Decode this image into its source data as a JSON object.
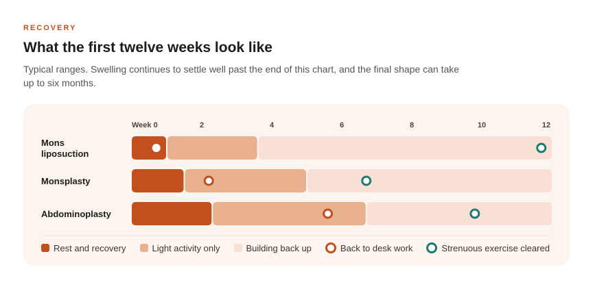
{
  "header": {
    "eyebrow": "RECOVERY",
    "title": "What the first twelve weeks look like",
    "subtitle": "Typical ranges. Swelling continues to settle well past the end of this chart, and the final shape can take up to six months."
  },
  "colors": {
    "rest": "#c2501e",
    "light": "#e8b08e",
    "building": "#f8e0d4",
    "desk": "#c0501e",
    "exercise": "#1e7b72",
    "accent": "#c0501e"
  },
  "chart_data": {
    "type": "bar",
    "orientation": "horizontal-stacked-timeline",
    "x_unit": "weeks",
    "xlim": [
      0,
      12
    ],
    "x_ticks": [
      0,
      2,
      4,
      6,
      8,
      10,
      12
    ],
    "x_tick_labels": [
      "Week 0",
      "2",
      "4",
      "6",
      "8",
      "10",
      "12"
    ],
    "grid": false,
    "legend_position": "bottom",
    "phases": [
      {
        "key": "rest",
        "label": "Rest and recovery"
      },
      {
        "key": "light",
        "label": "Light activity only"
      },
      {
        "key": "building",
        "label": "Building back up"
      }
    ],
    "markers": [
      {
        "key": "desk",
        "label": "Back to desk work"
      },
      {
        "key": "exercise",
        "label": "Strenuous exercise cleared"
      }
    ],
    "rows": [
      {
        "label": "Mons liposuction",
        "label_lines": [
          "Mons",
          "liposuction"
        ],
        "segments": [
          {
            "phase": "rest",
            "start": 0,
            "end": 1
          },
          {
            "phase": "light",
            "start": 1,
            "end": 3.6
          },
          {
            "phase": "building",
            "start": 3.6,
            "end": 12
          }
        ],
        "markers": [
          {
            "type": "desk",
            "week": 0.7
          },
          {
            "type": "exercise",
            "week": 11.7
          }
        ]
      },
      {
        "label": "Monsplasty",
        "label_lines": [
          "Monsplasty"
        ],
        "segments": [
          {
            "phase": "rest",
            "start": 0,
            "end": 1.5
          },
          {
            "phase": "light",
            "start": 1.5,
            "end": 5
          },
          {
            "phase": "building",
            "start": 5,
            "end": 12
          }
        ],
        "markers": [
          {
            "type": "desk",
            "week": 2.2
          },
          {
            "type": "exercise",
            "week": 6.7
          }
        ]
      },
      {
        "label": "Abdominoplasty",
        "label_lines": [
          "Abdominoplasty"
        ],
        "segments": [
          {
            "phase": "rest",
            "start": 0,
            "end": 2.3
          },
          {
            "phase": "light",
            "start": 2.3,
            "end": 6.7
          },
          {
            "phase": "building",
            "start": 6.7,
            "end": 12
          }
        ],
        "markers": [
          {
            "type": "desk",
            "week": 5.6
          },
          {
            "type": "exercise",
            "week": 9.8
          }
        ]
      }
    ]
  }
}
